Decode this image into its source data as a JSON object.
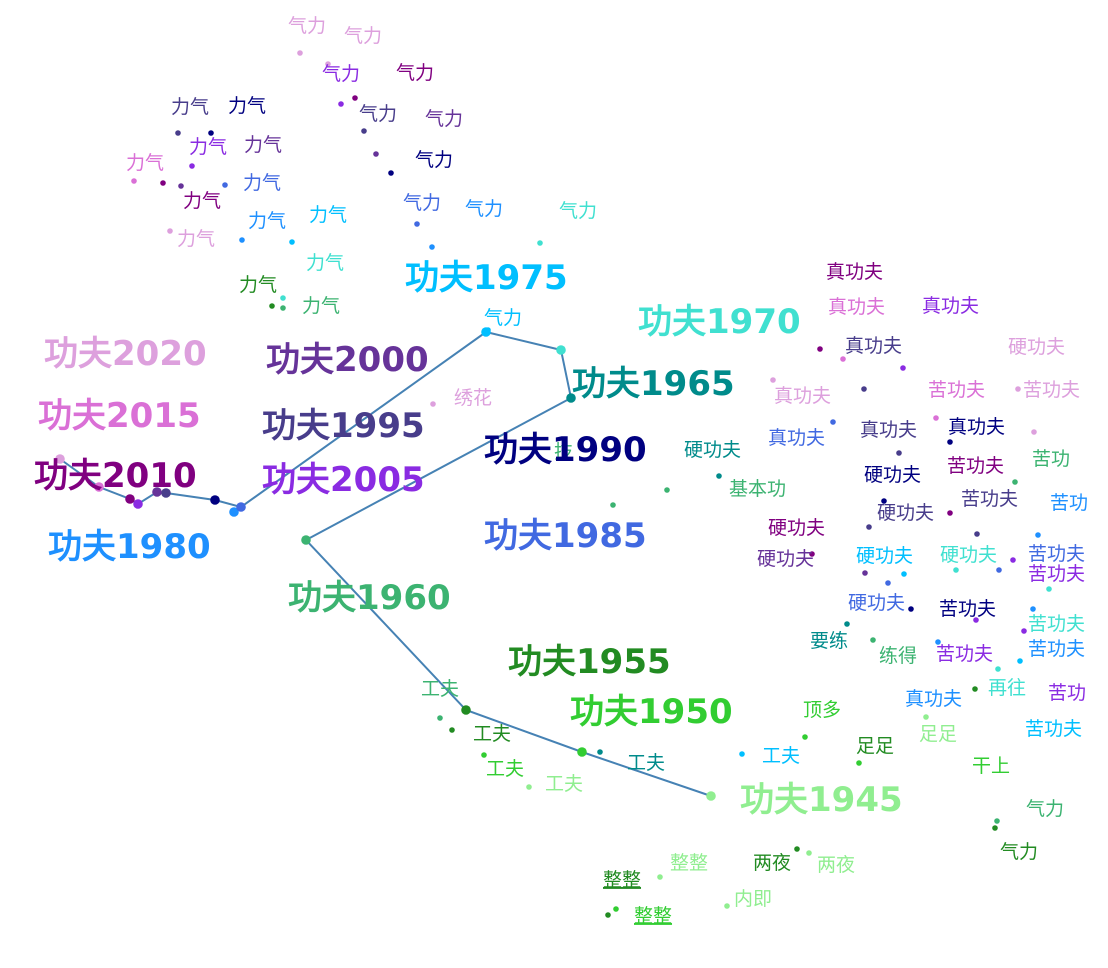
{
  "colors": {
    "path": "#4682b4"
  },
  "trajectory": {
    "word": "功夫",
    "points": [
      {
        "label": "功夫1945",
        "color": "#90ee90"
      },
      {
        "label": "功夫1950",
        "color": "#32cd32"
      },
      {
        "label": "功夫1955",
        "color": "#228b22"
      },
      {
        "label": "功夫1960",
        "color": "#3cb371"
      },
      {
        "label": "功夫1965",
        "color": "#008b8b"
      },
      {
        "label": "功夫1970",
        "color": "#40e0d0"
      },
      {
        "label": "功夫1975",
        "color": "#00bfff"
      },
      {
        "label": "功夫1980",
        "color": "#1e90ff"
      },
      {
        "label": "功夫1985",
        "color": "#4169e1"
      },
      {
        "label": "功夫1990",
        "color": "#000080"
      },
      {
        "label": "功夫1995",
        "color": "#483d8b"
      },
      {
        "label": "功夫2000",
        "color": "#663399"
      },
      {
        "label": "功夫2005",
        "color": "#8a2be2"
      },
      {
        "label": "功夫2010",
        "color": "#800080"
      },
      {
        "label": "功夫2015",
        "color": "#da70d6"
      },
      {
        "label": "功夫2020",
        "color": "#dda0dd"
      }
    ]
  },
  "neighbors": [
    {
      "text": "气力",
      "color": "#dda0dd"
    },
    {
      "text": "气力",
      "color": "#dda0dd"
    },
    {
      "text": "气力",
      "color": "#8a2be2"
    },
    {
      "text": "气力",
      "color": "#800080"
    },
    {
      "text": "气力",
      "color": "#483d8b"
    },
    {
      "text": "气力",
      "color": "#663399"
    },
    {
      "text": "气力",
      "color": "#000080"
    },
    {
      "text": "气力",
      "color": "#4169e1"
    },
    {
      "text": "气力",
      "color": "#1e90ff"
    },
    {
      "text": "气力",
      "color": "#40e0d0"
    },
    {
      "text": "力气",
      "color": "#483d8b"
    },
    {
      "text": "力气",
      "color": "#000080"
    },
    {
      "text": "力气",
      "color": "#8a2be2"
    },
    {
      "text": "力气",
      "color": "#663399"
    },
    {
      "text": "力气",
      "color": "#da70d6"
    },
    {
      "text": "力气",
      "color": "#4169e1"
    },
    {
      "text": "力气",
      "color": "#800080"
    },
    {
      "text": "力气",
      "color": "#1e90ff"
    },
    {
      "text": "力气",
      "color": "#00bfff"
    },
    {
      "text": "力气",
      "color": "#dda0dd"
    },
    {
      "text": "力气",
      "color": "#40e0d0"
    },
    {
      "text": "力气",
      "color": "#228b22"
    },
    {
      "text": "力气",
      "color": "#3cb371"
    },
    {
      "text": "气力",
      "color": "#00bfff"
    },
    {
      "text": "绣花",
      "color": "#dda0dd"
    },
    {
      "text": "技",
      "color": "#3cb371"
    },
    {
      "text": "真功夫",
      "color": "#800080"
    },
    {
      "text": "真功夫",
      "color": "#da70d6"
    },
    {
      "text": "真功夫",
      "color": "#8a2be2"
    },
    {
      "text": "真功夫",
      "color": "#483d8b"
    },
    {
      "text": "硬功夫",
      "color": "#dda0dd"
    },
    {
      "text": "真功夫",
      "color": "#dda0dd"
    },
    {
      "text": "苦功夫",
      "color": "#da70d6"
    },
    {
      "text": "苦功夫",
      "color": "#dda0dd"
    },
    {
      "text": "真功夫",
      "color": "#4169e1"
    },
    {
      "text": "真功夫",
      "color": "#483d8b"
    },
    {
      "text": "真功夫",
      "color": "#000080"
    },
    {
      "text": "硬功夫",
      "color": "#008b8b"
    },
    {
      "text": "基本功",
      "color": "#3cb371"
    },
    {
      "text": "硬功夫",
      "color": "#000080"
    },
    {
      "text": "苦功夫",
      "color": "#800080"
    },
    {
      "text": "苦功",
      "color": "#3cb371"
    },
    {
      "text": "苦功夫",
      "color": "#483d8b"
    },
    {
      "text": "苦功",
      "color": "#1e90ff"
    },
    {
      "text": "硬功夫",
      "color": "#483d8b"
    },
    {
      "text": "硬功夫",
      "color": "#800080"
    },
    {
      "text": "硬功夫",
      "color": "#663399"
    },
    {
      "text": "硬功夫",
      "color": "#00bfff"
    },
    {
      "text": "硬功夫",
      "color": "#40e0d0"
    },
    {
      "text": "苦功夫",
      "color": "#4169e1"
    },
    {
      "text": "苦功夫",
      "color": "#8a2be2"
    },
    {
      "text": "硬功夫",
      "color": "#4169e1"
    },
    {
      "text": "苦功夫",
      "color": "#000080"
    },
    {
      "text": "苦功夫",
      "color": "#40e0d0"
    },
    {
      "text": "要练",
      "color": "#008b8b"
    },
    {
      "text": "练得",
      "color": "#3cb371"
    },
    {
      "text": "苦功夫",
      "color": "#8a2be2"
    },
    {
      "text": "苦功夫",
      "color": "#1e90ff"
    },
    {
      "text": "再往",
      "color": "#40e0d0"
    },
    {
      "text": "苦功",
      "color": "#8a2be2"
    },
    {
      "text": "真功夫",
      "color": "#1e90ff"
    },
    {
      "text": "苦功夫",
      "color": "#00bfff"
    },
    {
      "text": "顶多",
      "color": "#32cd32"
    },
    {
      "text": "足足",
      "color": "#90ee90"
    },
    {
      "text": "足足",
      "color": "#228b22"
    },
    {
      "text": "干上",
      "color": "#32cd32"
    },
    {
      "text": "工夫",
      "color": "#00bfff"
    },
    {
      "text": "气力",
      "color": "#3cb371"
    },
    {
      "text": "气力",
      "color": "#228b22"
    },
    {
      "text": "工夫",
      "color": "#3cb371"
    },
    {
      "text": "工夫",
      "color": "#228b22"
    },
    {
      "text": "工夫",
      "color": "#32cd32"
    },
    {
      "text": "工夫",
      "color": "#90ee90"
    },
    {
      "text": "工夫",
      "color": "#008b8b"
    },
    {
      "text": "整整",
      "color": "#228b22"
    },
    {
      "text": "整整",
      "color": "#90ee90"
    },
    {
      "text": "两夜",
      "color": "#228b22"
    },
    {
      "text": "两夜",
      "color": "#90ee90"
    },
    {
      "text": "内即",
      "color": "#90ee90"
    },
    {
      "text": "整整",
      "color": "#32cd32"
    }
  ]
}
